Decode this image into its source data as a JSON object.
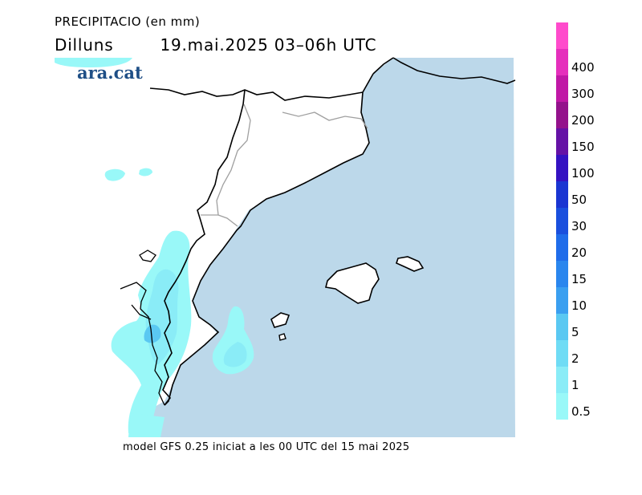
{
  "header": {
    "variable": "PRECIPITACIO (en mm)",
    "day": "Dilluns",
    "date_time": "19.mai.2025 03–06h UTC"
  },
  "logo": {
    "text": "ara.cat"
  },
  "footer": {
    "model_note": "model GFS 0.25 iniciat a les 00 UTC del 15 mai 2025"
  },
  "legend": {
    "levels": [
      {
        "label": "0.5",
        "color": "#99f8f8"
      },
      {
        "label": "1",
        "color": "#8aecf7"
      },
      {
        "label": "2",
        "color": "#6fdcf5"
      },
      {
        "label": "5",
        "color": "#5ac8f2"
      },
      {
        "label": "10",
        "color": "#3a9ff0"
      },
      {
        "label": "15",
        "color": "#2a86ee"
      },
      {
        "label": "20",
        "color": "#1f6cea"
      },
      {
        "label": "30",
        "color": "#1a4fde"
      },
      {
        "label": "50",
        "color": "#1a35d2"
      },
      {
        "label": "100",
        "color": "#3412c2"
      },
      {
        "label": "150",
        "color": "#6512a6"
      },
      {
        "label": "200",
        "color": "#94128c"
      },
      {
        "label": "300",
        "color": "#c018a6"
      },
      {
        "label": "400",
        "color": "#e52fbc"
      },
      {
        "label": "",
        "color": "#ff4bcc"
      }
    ]
  },
  "colors": {
    "sea": "#bcd8ea",
    "land": "#ffffff",
    "coast": "#000000",
    "internal_border": "#a0a0a0"
  }
}
